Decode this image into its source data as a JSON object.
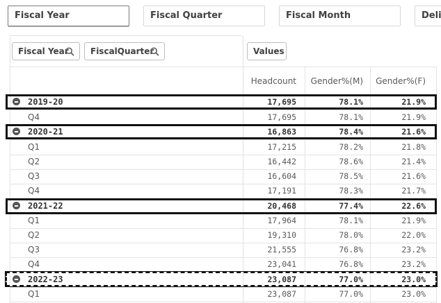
{
  "filters": [
    "Fiscal Year",
    "Fiscal Quarter",
    "Fiscal Month",
    "Deli"
  ],
  "dimension_chips": [
    "Fiscal Year",
    "FiscalQuarter"
  ],
  "values_chip": "Values",
  "columns": [
    "Headcount",
    "Gender%(M)",
    "Gender%(F)"
  ],
  "rows": [
    {
      "type": "group",
      "label": "2019-20",
      "headcount": "17,695",
      "m": "78.1%",
      "f": "21.9%"
    },
    {
      "type": "child",
      "label": "Q4",
      "headcount": "17,695",
      "m": "78.1%",
      "f": "21.9%"
    },
    {
      "type": "group",
      "label": "2020-21",
      "headcount": "16,863",
      "m": "78.4%",
      "f": "21.6%"
    },
    {
      "type": "child",
      "label": "Q1",
      "headcount": "17,215",
      "m": "78.2%",
      "f": "21.8%"
    },
    {
      "type": "child",
      "label": "Q2",
      "headcount": "16,442",
      "m": "78.6%",
      "f": "21.4%"
    },
    {
      "type": "child",
      "label": "Q3",
      "headcount": "16,604",
      "m": "78.5%",
      "f": "21.6%"
    },
    {
      "type": "child",
      "label": "Q4",
      "headcount": "17,191",
      "m": "78.3%",
      "f": "21.7%"
    },
    {
      "type": "group",
      "label": "2021-22",
      "headcount": "20,468",
      "m": "77.4%",
      "f": "22.6%"
    },
    {
      "type": "child",
      "label": "Q1",
      "headcount": "17,964",
      "m": "78.1%",
      "f": "21.9%"
    },
    {
      "type": "child",
      "label": "Q2",
      "headcount": "19,310",
      "m": "78.0%",
      "f": "22.0%"
    },
    {
      "type": "child",
      "label": "Q3",
      "headcount": "21,555",
      "m": "76.8%",
      "f": "23.2%"
    },
    {
      "type": "child",
      "label": "Q4",
      "headcount": "23,041",
      "m": "76.8%",
      "f": "23.2%"
    },
    {
      "type": "group",
      "label": "2022-23",
      "headcount": "23,087",
      "m": "77.0%",
      "f": "23.0%"
    },
    {
      "type": "child",
      "label": "Q1",
      "headcount": "23,087",
      "m": "77.0%",
      "f": "23.0%"
    }
  ]
}
